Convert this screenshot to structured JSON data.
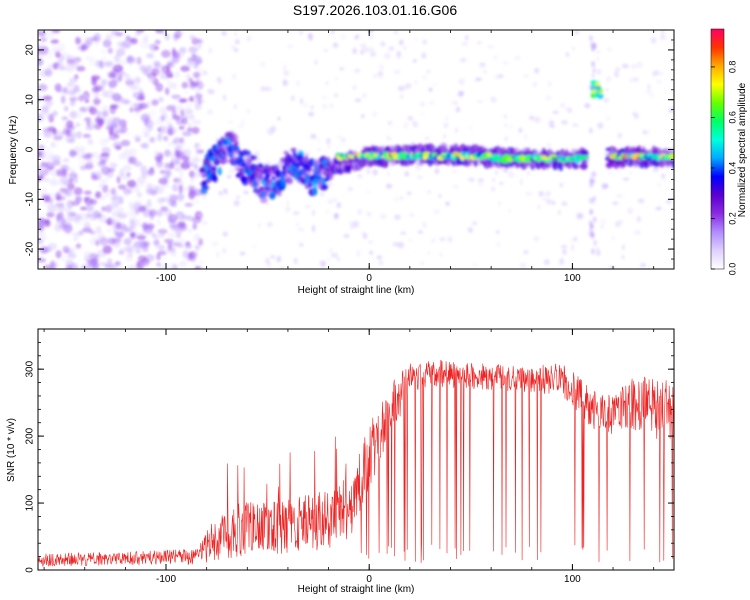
{
  "title": "S197.2026.103.01.16.G06",
  "colors": {
    "snr_line": "#ee2222",
    "axis": "#000000",
    "colormap": [
      "#ffffff",
      "#e0d0ff",
      "#b08cff",
      "#8a2be2",
      "#5a00d0",
      "#0000ff",
      "#00aaff",
      "#00ffdd",
      "#00ff66",
      "#66ff00",
      "#ffff00",
      "#ffaa00",
      "#ff3300",
      "#ff0066"
    ]
  },
  "chart_data": [
    {
      "type": "heatmap",
      "title": "",
      "xlabel": "Height of straight line (km)",
      "ylabel": "Frequency (Hz)",
      "xlim": [
        -163,
        150
      ],
      "ylim": [
        -24,
        24
      ],
      "xticks": [
        -100,
        0,
        100
      ],
      "yticks": [
        -20,
        -10,
        0,
        10,
        20
      ],
      "colorbar": {
        "label": "Normalized spectral amplitude",
        "range": [
          0,
          0.95
        ],
        "ticks": [
          0.0,
          0.2,
          0.4,
          0.6,
          0.8
        ]
      },
      "features": [
        {
          "name": "noise",
          "x_range": [
            -163,
            -83
          ],
          "f_range": [
            -24,
            24
          ],
          "amp": 0.18
        },
        {
          "name": "tone",
          "points": [
            [
              -82,
              -5.5
            ],
            [
              -74,
              -2
            ],
            [
              -68,
              1.5
            ],
            [
              -64,
              -3
            ],
            [
              -58,
              -4
            ],
            [
              -52,
              -7
            ],
            [
              -46,
              -6.5
            ],
            [
              -40,
              -3.5
            ],
            [
              -34,
              -3
            ],
            [
              -28,
              -5.5
            ],
            [
              -22,
              -4.5
            ],
            [
              -16,
              -3
            ],
            [
              -10,
              -2.5
            ],
            [
              0,
              -1.5
            ],
            [
              20,
              -1
            ],
            [
              40,
              -1
            ],
            [
              60,
              -1.5
            ],
            [
              80,
              -2
            ],
            [
              95,
              -2
            ],
            [
              106,
              -1.8
            ]
          ],
          "amp": 0.45
        },
        {
          "name": "bright-line",
          "x_range": [
            -15,
            106
          ],
          "f": -1.3,
          "amp": 0.75
        },
        {
          "name": "bright-segment-right",
          "x_range": [
            120,
            150
          ],
          "f": -1.5,
          "amp": 0.8
        },
        {
          "name": "spur",
          "x": 112,
          "f": 12,
          "amp": 0.7
        }
      ],
      "gaps": [
        [
          107,
          117
        ]
      ]
    },
    {
      "type": "line",
      "title": "",
      "xlabel": "Height of straight line (km)",
      "ylabel": "SNR (10 * v/v)",
      "xlim": [
        -163,
        150
      ],
      "ylim": [
        0,
        360
      ],
      "xticks": [
        -100,
        0,
        100
      ],
      "yticks": [
        0,
        100,
        200,
        300
      ],
      "series": [
        {
          "name": "SNR",
          "envelope_x": [
            -163,
            -120,
            -85,
            -78,
            -65,
            -40,
            -20,
            -8,
            0,
            5,
            10,
            15,
            20,
            30,
            50,
            80,
            95,
            105,
            110,
            120,
            130,
            140,
            150
          ],
          "envelope_mean": [
            15,
            17,
            20,
            40,
            60,
            65,
            75,
            100,
            170,
            200,
            240,
            260,
            285,
            295,
            290,
            285,
            285,
            255,
            240,
            230,
            250,
            245,
            220
          ],
          "envelope_spread": [
            10,
            10,
            12,
            30,
            40,
            40,
            45,
            50,
            50,
            45,
            40,
            35,
            25,
            20,
            20,
            20,
            25,
            30,
            30,
            30,
            40,
            45,
            60
          ]
        }
      ]
    }
  ]
}
